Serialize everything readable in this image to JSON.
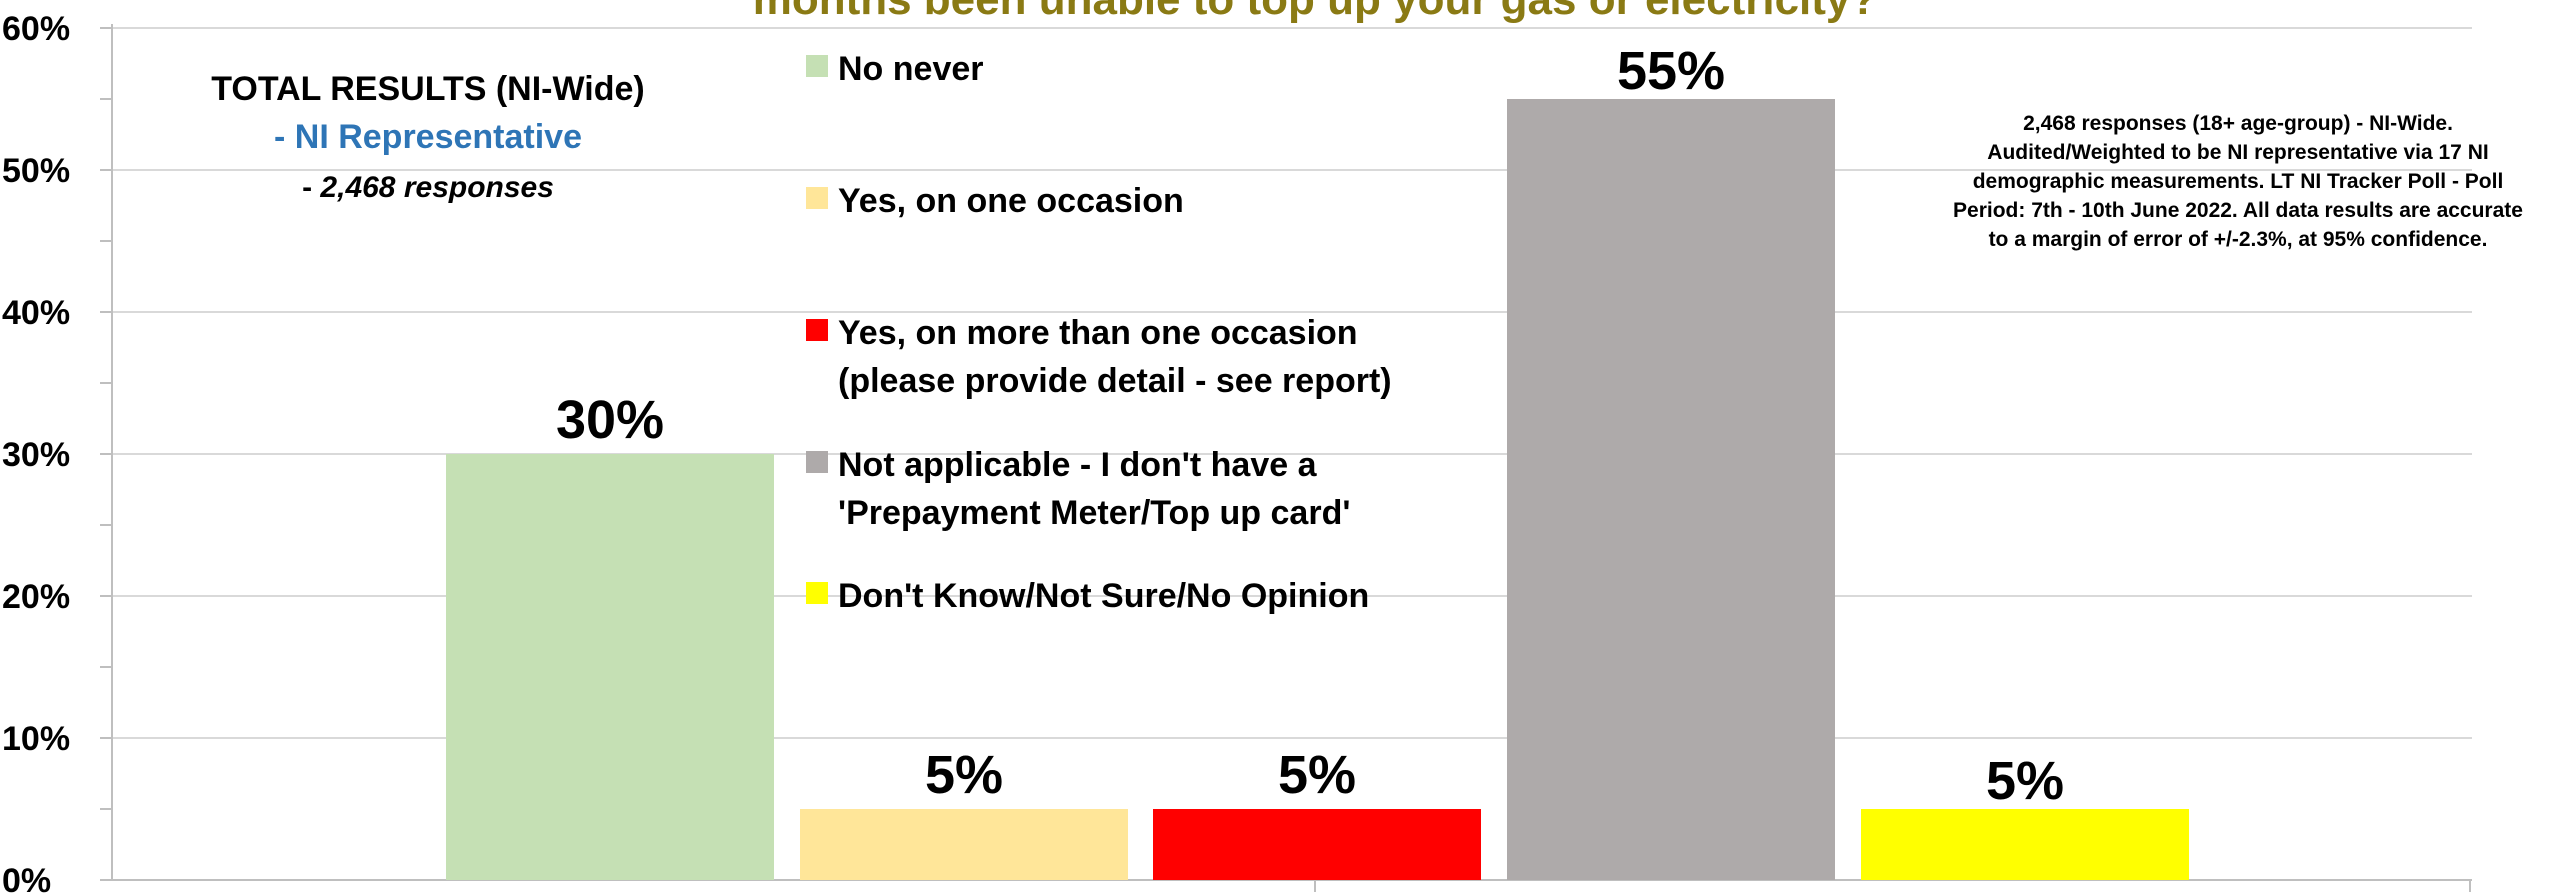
{
  "chart_data": {
    "type": "bar",
    "title": "months been unable to top up your gas or electricity?",
    "categories": [
      "No never",
      "Yes, on one occasion",
      "Yes, on more than one occasion (please provide detail - see report)",
      "Not applicable - I don't have a 'Prepayment Meter/Top up card'",
      "Don't Know/Not Sure/No Opinion"
    ],
    "values": [
      30,
      5,
      5,
      55,
      5
    ],
    "value_labels": [
      "30%",
      "5%",
      "5%",
      "55%",
      "5%"
    ],
    "colors": [
      "#c5e0b4",
      "#ffe699",
      "#ff0000",
      "#aeaaaa",
      "#ffff00"
    ],
    "ylim": [
      0,
      60
    ],
    "yticks": [
      0,
      10,
      20,
      30,
      40,
      50,
      60
    ],
    "ytick_labels": [
      "0%",
      "10%",
      "20%",
      "30%",
      "40%",
      "50%",
      "60%"
    ],
    "xlabel": "",
    "ylabel": "",
    "grid": true,
    "legend": {
      "placement": "top-center",
      "entries": [
        {
          "lines": [
            "No never"
          ],
          "color": "#c5e0b4"
        },
        {
          "lines": [
            "Yes, on one occasion"
          ],
          "color": "#ffe699"
        },
        {
          "lines": [
            "Yes, on more than one occasion",
            "(please provide detail - see report)"
          ],
          "color": "#ff0000"
        },
        {
          "lines": [
            "Not applicable - I don't have a",
            "'Prepayment Meter/Top up card'"
          ],
          "color": "#aeaaaa"
        },
        {
          "lines": [
            "Don't Know/Not Sure/No Opinion"
          ],
          "color": "#ffff00"
        }
      ]
    }
  },
  "summary": {
    "title": "TOTAL RESULTS (NI-Wide)",
    "subtitle": "- NI Representative",
    "responses_prefix": "- ",
    "responses": "2,468 responses"
  },
  "note": {
    "lines": [
      "2,468 responses (18+ age-group) - NI-Wide.",
      "Audited/Weighted to be NI representative via 17 NI",
      "demographic measurements. LT NI Tracker Poll - Poll",
      "Period: 7th - 10th June 2022. All data results are accurate",
      "to a margin of error of +/-2.3%, at 95% confidence."
    ]
  },
  "colors": {
    "title": "#8a7a14",
    "subtitle": "#2e75b6",
    "gridline": "#d9d9d9",
    "axis": "#bfbfbf"
  }
}
